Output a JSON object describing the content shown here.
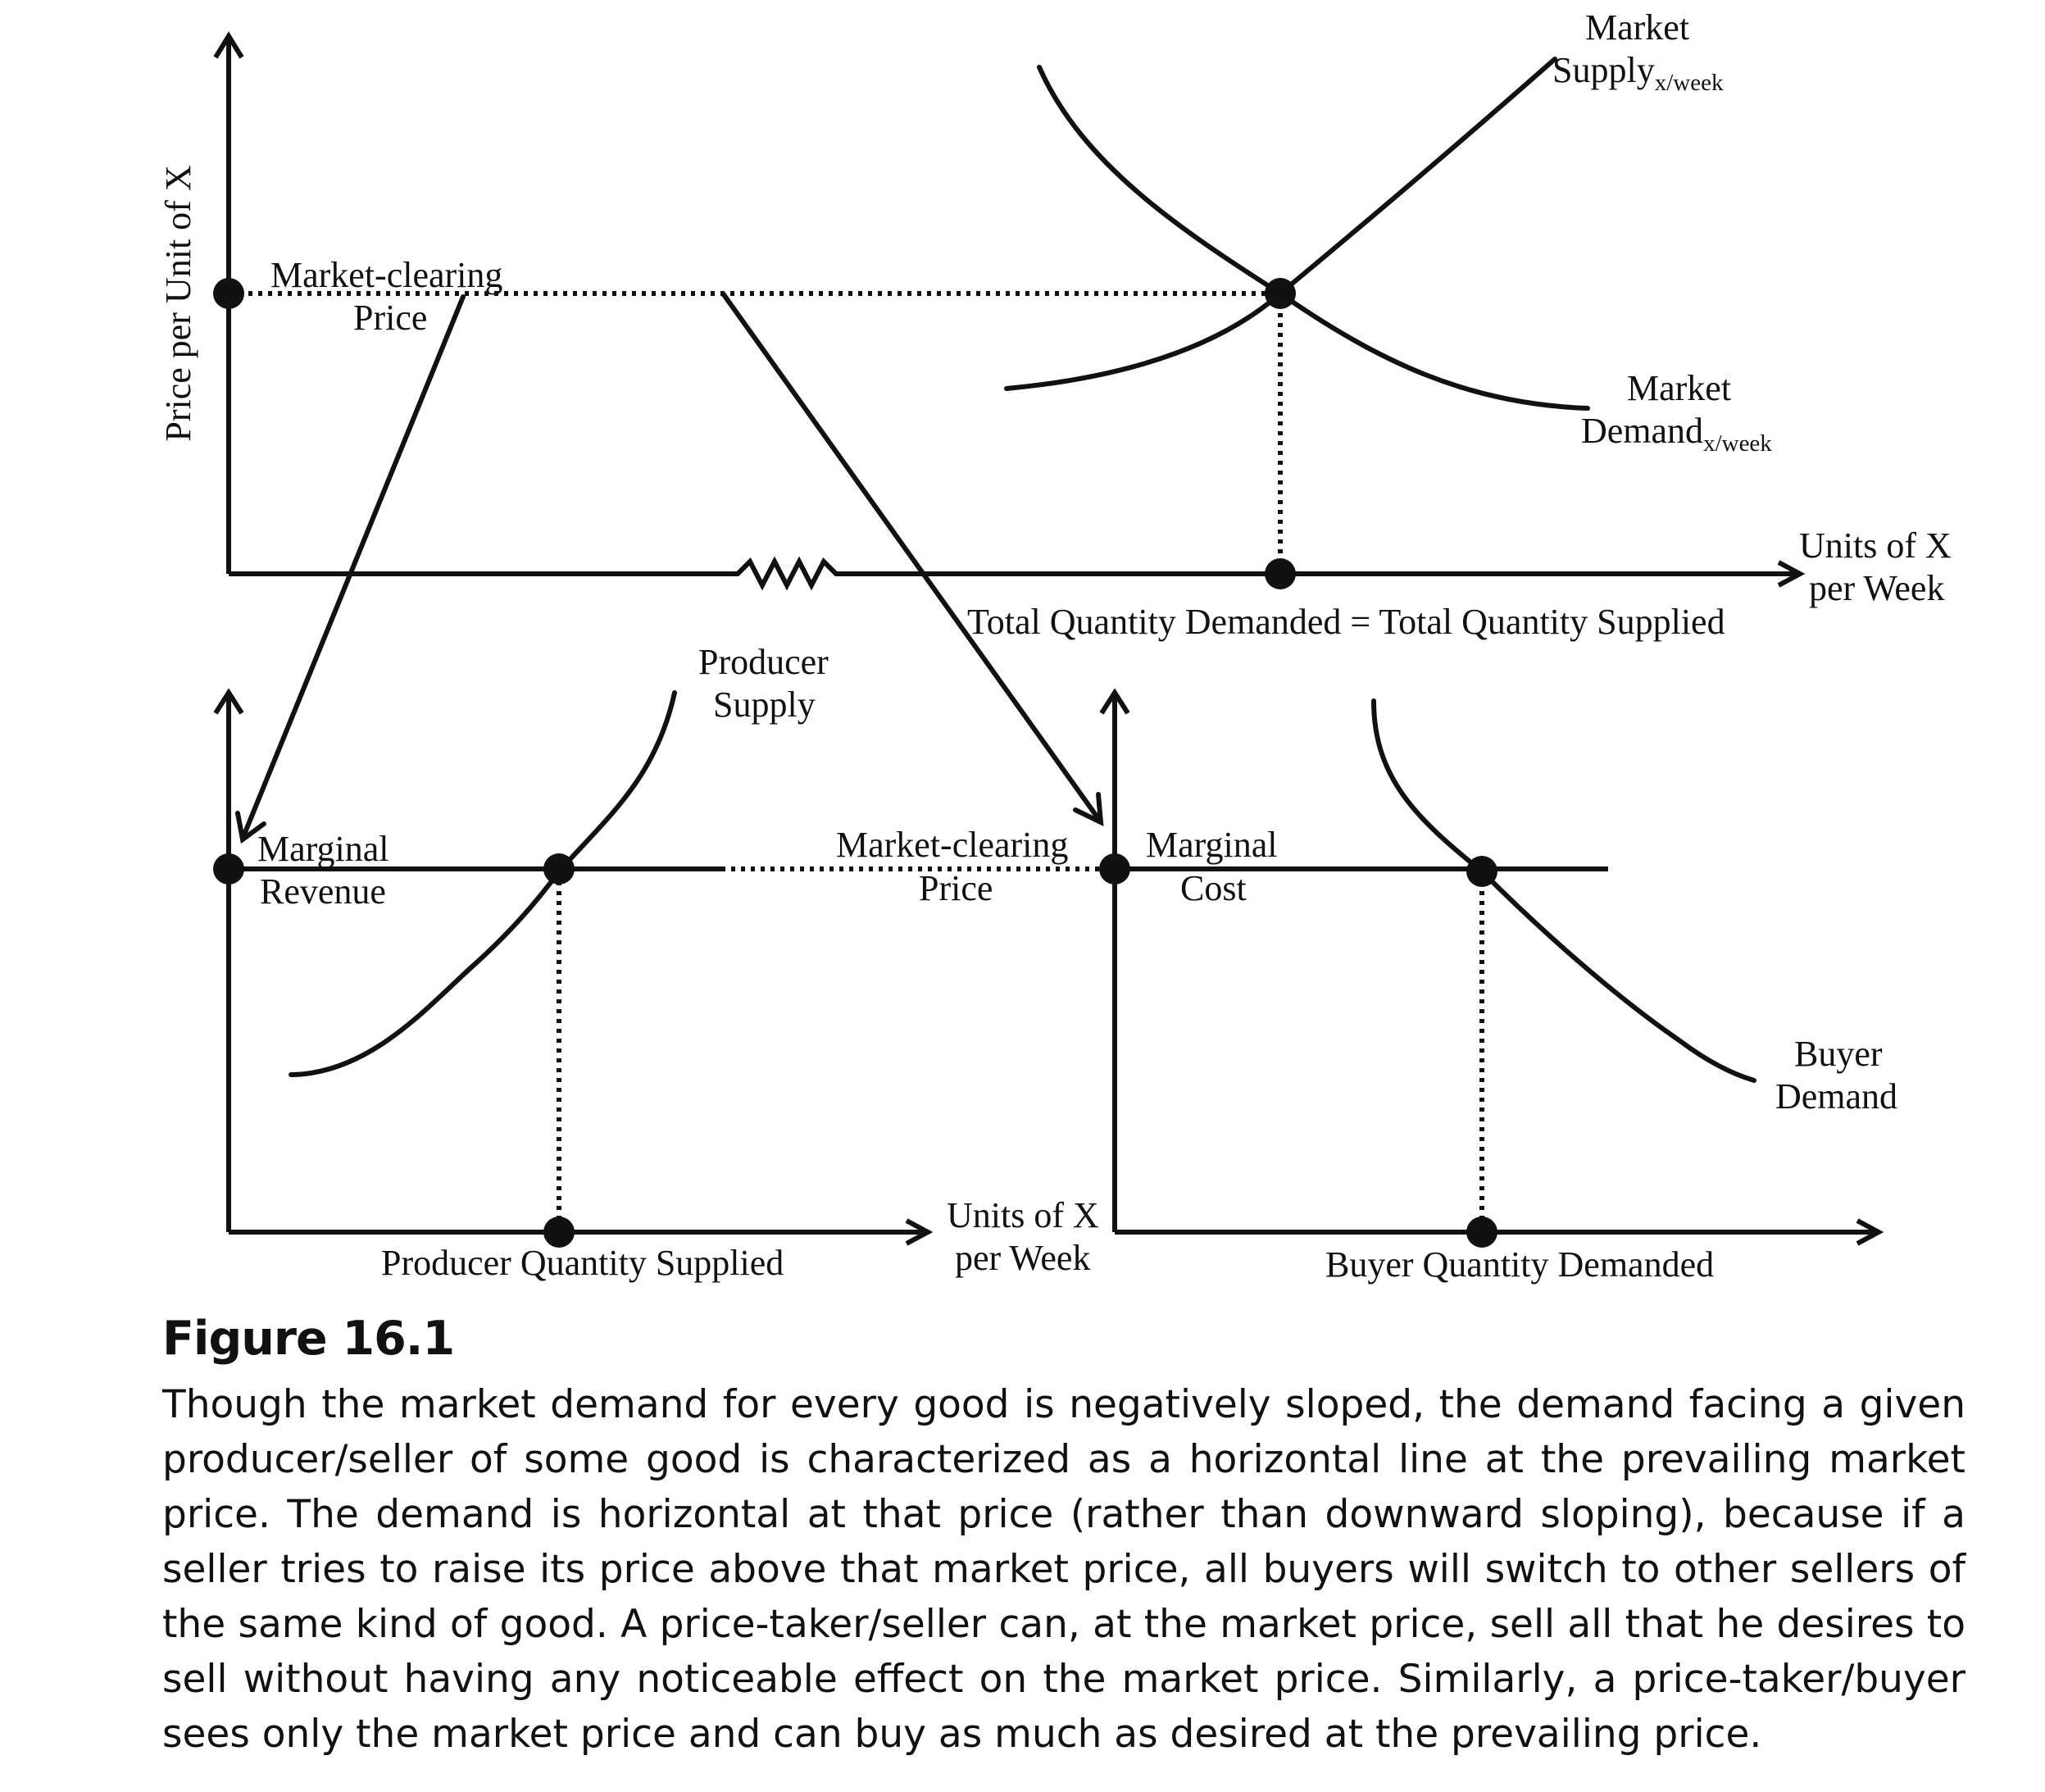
{
  "top_panel": {
    "y_axis_label": "Price per Unit of X",
    "price_label_line1": "Market-clearing",
    "price_label_line2": "Price",
    "supply_label_line1": "Market",
    "supply_label_line2": "Supply",
    "supply_subscript": "x/week",
    "demand_label_line1": "Market",
    "demand_label_line2": "Demand",
    "demand_subscript": "x/week",
    "x_axis_label_line1": "Units of X",
    "x_axis_label_line2": "per Week",
    "equality_label": "Total Quantity Demanded = Total Quantity Supplied"
  },
  "producer_panel": {
    "supply_label_line1": "Producer",
    "supply_label_line2": "Supply",
    "mr_label_line1": "Marginal",
    "mr_label_line2": "Revenue",
    "x_axis_label": "Producer Quantity Supplied"
  },
  "middle": {
    "price_label_line1": "Market-clearing",
    "price_label_line2": "Price",
    "x_axis_label_line1": "Units of X",
    "x_axis_label_line2": "per Week"
  },
  "buyer_panel": {
    "mc_label_line1": "Marginal",
    "mc_label_line2": "Cost",
    "demand_label_line1": "Buyer",
    "demand_label_line2": "Demand",
    "x_axis_label": "Buyer Quantity Demanded"
  },
  "caption": {
    "figure_number": "Figure 16.1",
    "text": "Though the market demand for every good is negatively sloped, the demand facing a given producer/seller of some good is characterized as a horizontal line at the prevailing market price. The demand is horizontal at that price (rather than downward sloping), because if a seller tries to raise its price above that market price, all buyers will switch to other sellers of the same kind of good. A price-taker/seller can, at the market price, sell all that he desires to sell without having any noticeable effect on the market price. Similarly, a price-taker/buyer sees only the market price and can buy as much as desired at the prevailing price."
  }
}
